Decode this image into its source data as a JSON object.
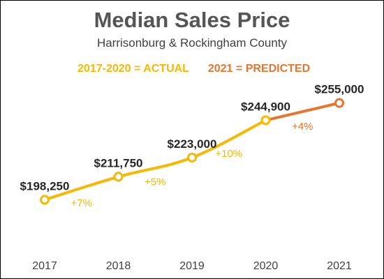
{
  "chart_data": {
    "type": "line",
    "title": "Median Sales Price",
    "subtitle": "Harrisonburg & Rockingham County",
    "legend": [
      {
        "label": "2017-2020 = ACTUAL",
        "color": "#f6b800"
      },
      {
        "label": "2021 = PREDICTED",
        "color": "#e8742d"
      }
    ],
    "legend_position": "top",
    "categories": [
      "2017",
      "2018",
      "2019",
      "2020",
      "2021"
    ],
    "values": [
      198250,
      211750,
      223000,
      244900,
      255000
    ],
    "value_labels": [
      "$198,250",
      "$211,750",
      "$223,000",
      "$244,900",
      "$255,000"
    ],
    "change_labels": [
      "+7%",
      "+5%",
      "+10%",
      "+4%"
    ],
    "actual_color": "#f6b800",
    "predicted_color": "#e8742d",
    "predicted_from_index": 3,
    "ylim": [
      180000,
      270000
    ],
    "grid": false,
    "xlabel": "",
    "ylabel": ""
  }
}
